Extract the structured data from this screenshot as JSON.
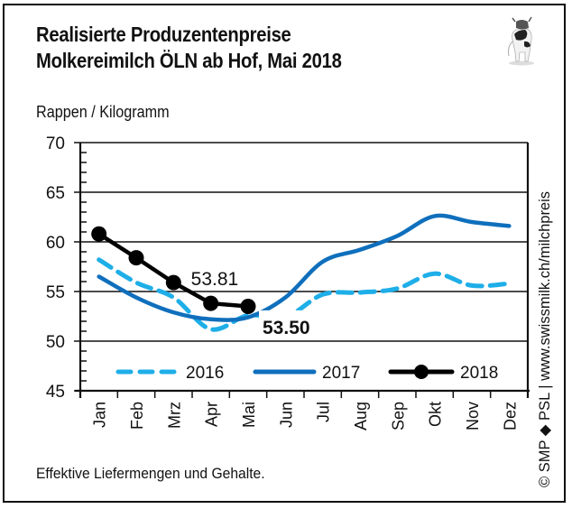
{
  "header": {
    "title_line1": "Realisierte Produzentenpreise",
    "title_line2": "Molkereimilch ÖLN ab Hof, Mai 2018",
    "unit_label": "Rappen / Kilogramm",
    "logo_icon": "cow-icon"
  },
  "footer": {
    "note": "Effektive Liefermengen und Gehalte.",
    "credit": "© SMP ◆ PSL | www.swissmilk.ch/milchpreis"
  },
  "colors": {
    "s2016": "#1eaee8",
    "s2017": "#0f6fbc",
    "s2018": "#000000"
  },
  "chart_data": {
    "type": "line",
    "title": "Realisierte Produzentenpreise Molkereimilch ÖLN ab Hof, Mai 2018",
    "xlabel": "",
    "ylabel": "Rappen / Kilogramm",
    "ylim": [
      45,
      70
    ],
    "yticks": [
      "45",
      "50",
      "55",
      "60",
      "65",
      "70"
    ],
    "grid": true,
    "legend_position": "bottom-inside",
    "categories": [
      "Jan",
      "Feb",
      "Mrz",
      "Apr",
      "Mai",
      "Jun",
      "Jul",
      "Aug",
      "Sep",
      "Okt",
      "Nov",
      "Dez"
    ],
    "series": [
      {
        "name": "2016",
        "style": "dashed",
        "values": [
          58.2,
          55.9,
          54.4,
          51.2,
          52.6,
          52.4,
          54.7,
          54.9,
          55.3,
          56.8,
          55.6,
          55.8
        ]
      },
      {
        "name": "2017",
        "style": "solid",
        "values": [
          56.5,
          54.4,
          52.9,
          52.2,
          52.4,
          54.4,
          58.0,
          59.2,
          60.6,
          62.6,
          62.0,
          61.6
        ]
      },
      {
        "name": "2018",
        "style": "solid-markers",
        "values": [
          60.8,
          58.4,
          55.9,
          53.81,
          53.5
        ]
      }
    ],
    "annotations": [
      {
        "text": "53.81",
        "ref": "2018 Apr"
      },
      {
        "text": "53.50",
        "ref": "2018 Mai",
        "bold": true
      }
    ]
  }
}
